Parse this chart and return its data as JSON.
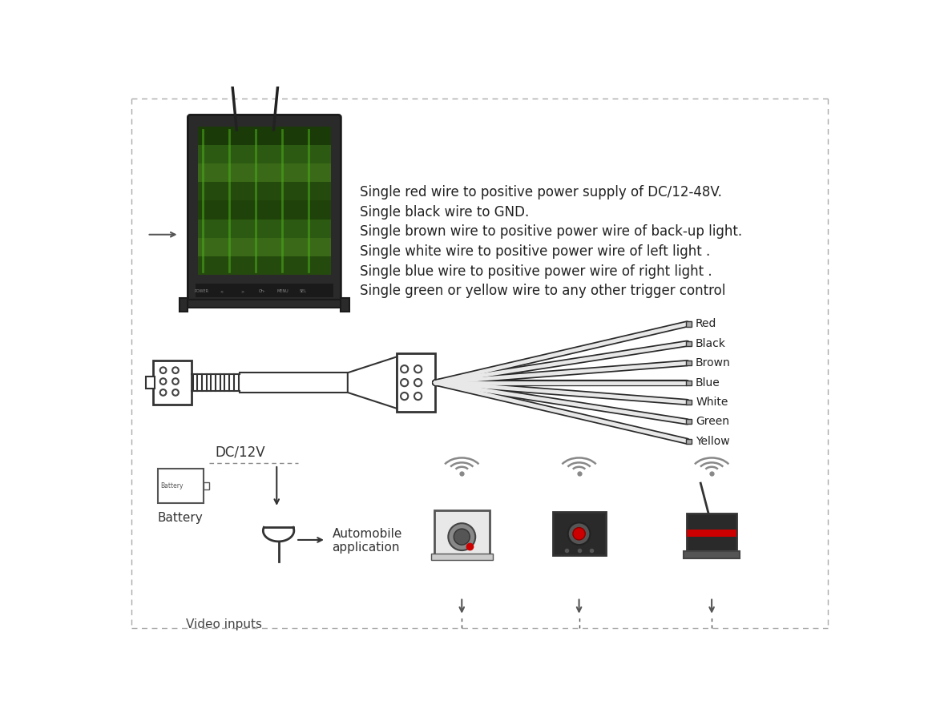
{
  "bg_color": "#ffffff",
  "border_color": "#aaaaaa",
  "title_lines": [
    "Single red wire to positive power supply of DC/12-48V.",
    "Single black wire to GND.",
    "Single brown wire to positive power wire of back-up light.",
    "Single white wire to positive power wire of left light .",
    "Single blue wire to positive power wire of right light .",
    "Single green or yellow wire to any other trigger control"
  ],
  "wire_labels": [
    "Red",
    "Black",
    "Brown",
    "Blue",
    "White",
    "Green",
    "Yellow"
  ],
  "dc_label": "DC/12V"
}
